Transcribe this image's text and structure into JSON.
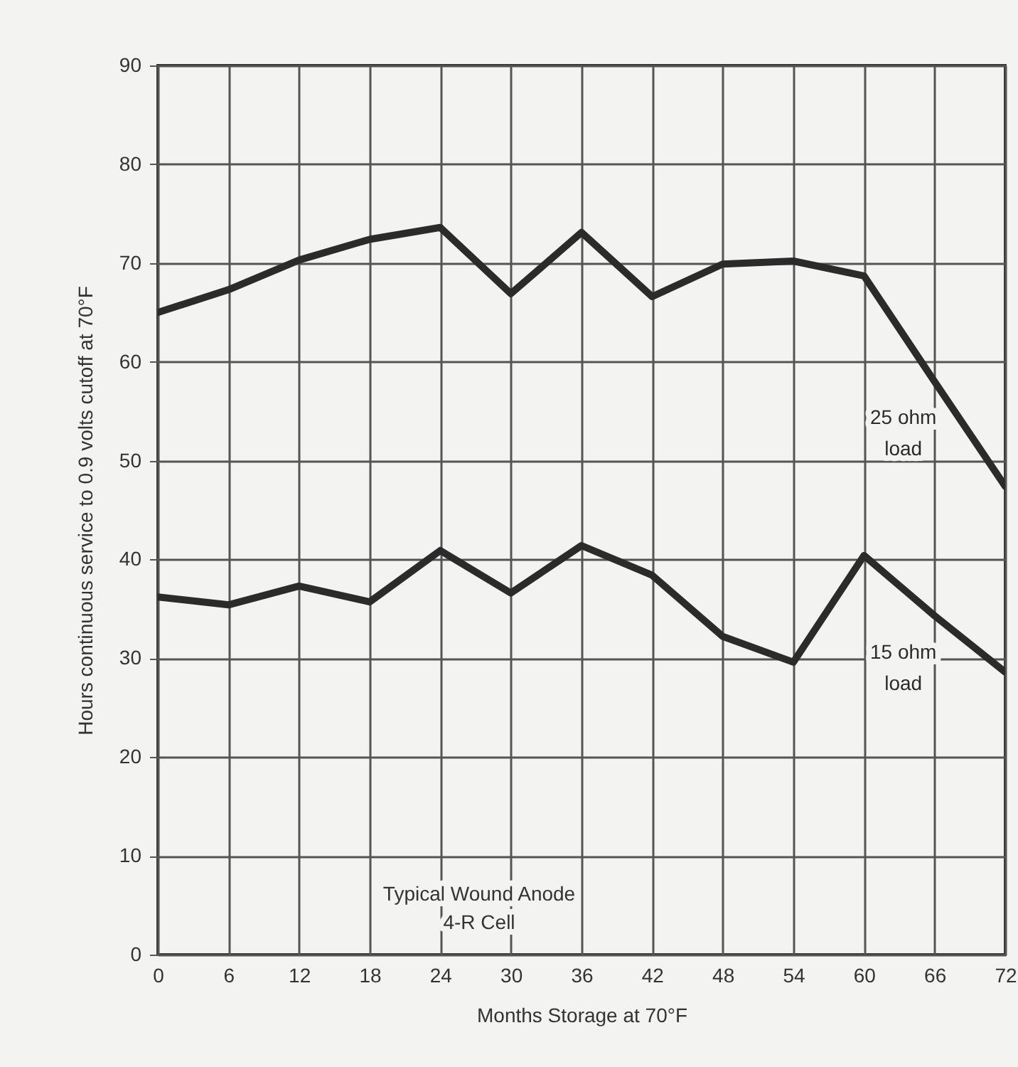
{
  "chart_data": {
    "type": "line",
    "xlabel": "Months Storage at 70°F",
    "ylabel": "Hours continuous service to 0.9 volts cutoff at 70°F",
    "x": [
      0,
      6,
      12,
      18,
      24,
      30,
      36,
      42,
      48,
      54,
      60,
      66,
      72
    ],
    "series": [
      {
        "name": "25 ohm load",
        "color": "#2b2b2b",
        "values": [
          65,
          67.3,
          70.3,
          72.4,
          73.6,
          66.9,
          73.1,
          66.6,
          69.9,
          70.2,
          68.7,
          58,
          47.4
        ]
      },
      {
        "name": "15 ohm load",
        "color": "#2b2b2b",
        "values": [
          36.2,
          35.4,
          37.3,
          35.7,
          40.9,
          36.6,
          41.4,
          38.4,
          32.2,
          29.6,
          40.4,
          34.3,
          28.6
        ]
      }
    ],
    "xlim": [
      0,
      72
    ],
    "xticks": [
      0,
      6,
      12,
      18,
      24,
      30,
      36,
      42,
      48,
      54,
      60,
      66,
      72
    ],
    "ylim": [
      0,
      90
    ],
    "yticks": [
      0,
      10,
      20,
      30,
      40,
      50,
      60,
      70,
      80,
      90
    ],
    "grid": true,
    "legend": false,
    "marker": "none",
    "line_style": "solid",
    "annotations": [
      "Typical Wound Anode 4-R Cell"
    ]
  }
}
